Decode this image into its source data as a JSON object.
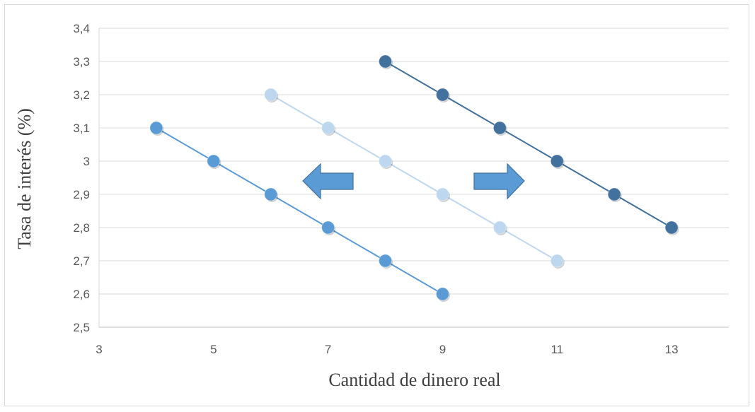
{
  "chart_data": {
    "type": "scatter",
    "title": "",
    "xlabel": "Cantidad de dinero real",
    "ylabel": "Tasa de interés (%)",
    "xlim": [
      3,
      14
    ],
    "ylim": [
      2.5,
      3.4
    ],
    "x_ticks": [
      3,
      5,
      7,
      9,
      11,
      13
    ],
    "x_tick_labels": [
      "3",
      "5",
      "7",
      "9",
      "11",
      "13"
    ],
    "y_ticks": [
      2.5,
      2.6,
      2.7,
      2.8,
      2.9,
      3.0,
      3.1,
      3.2,
      3.3,
      3.4
    ],
    "y_tick_labels": [
      "2,5",
      "2,6",
      "2,7",
      "2,8",
      "2,9",
      "3",
      "3,1",
      "3,2",
      "3,3",
      "3,4"
    ],
    "grid": true,
    "legend": "none",
    "series": [
      {
        "color": "#5b9bd5",
        "points": [
          [
            4,
            3.1
          ],
          [
            5,
            3.0
          ],
          [
            6,
            2.9
          ],
          [
            7,
            2.8
          ],
          [
            8,
            2.7
          ],
          [
            9,
            2.6
          ]
        ]
      },
      {
        "color": "#bdd7ee",
        "points": [
          [
            6,
            3.2
          ],
          [
            7,
            3.1
          ],
          [
            8,
            3.0
          ],
          [
            9,
            2.9
          ],
          [
            10,
            2.8
          ],
          [
            11,
            2.7
          ]
        ]
      },
      {
        "color": "#41719c",
        "points": [
          [
            8,
            3.3
          ],
          [
            9,
            3.2
          ],
          [
            10,
            3.1
          ],
          [
            11,
            3.0
          ],
          [
            12,
            2.9
          ],
          [
            13,
            2.8
          ]
        ]
      }
    ],
    "annotations": [
      {
        "kind": "arrow",
        "direction": "left",
        "color": "#5b9bd5"
      },
      {
        "kind": "arrow",
        "direction": "right",
        "color": "#5b9bd5"
      }
    ]
  }
}
